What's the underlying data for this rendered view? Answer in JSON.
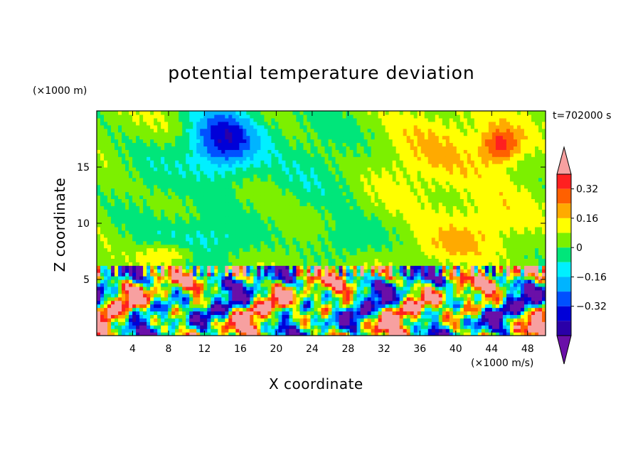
{
  "chart_data": {
    "type": "heatmap",
    "title": "potential temperature deviation",
    "xlabel": "X coordinate",
    "ylabel": "Z coordinate",
    "x_unit": "(×1000 m/s)",
    "y_unit": "(×1000 m)",
    "time_label": "t=702000 s",
    "xlim": [
      0,
      50
    ],
    "ylim": [
      0,
      20
    ],
    "x_ticks": [
      4,
      8,
      12,
      16,
      20,
      24,
      28,
      32,
      36,
      40,
      44,
      48
    ],
    "y_ticks": [
      5,
      10,
      15
    ],
    "colorbar": {
      "levels": [
        -0.48,
        -0.4,
        -0.32,
        -0.24,
        -0.16,
        -0.08,
        0,
        0.08,
        0.16,
        0.24,
        0.32,
        0.4
      ],
      "tick_labels": [
        "0.32",
        "0.16",
        "0",
        "−0.16",
        "−0.32"
      ],
      "tick_values": [
        0.32,
        0.16,
        0,
        -0.16,
        -0.32
      ],
      "colors": [
        "#6a0fa8",
        "#2a00a8",
        "#0000d8",
        "#0050ff",
        "#00b4ff",
        "#00f0ff",
        "#00e67a",
        "#7cf000",
        "#ffff00",
        "#ffaa00",
        "#ff6000",
        "#ff2020",
        "#f7a0a0"
      ],
      "extend": "both"
    }
  }
}
